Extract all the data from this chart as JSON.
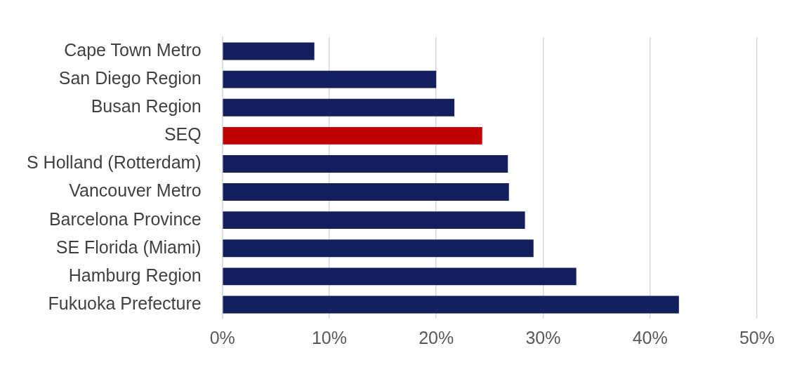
{
  "chart_data": {
    "type": "bar",
    "orientation": "horizontal",
    "categories": [
      "Cape Town Metro",
      "San Diego Region",
      "Busan Region",
      "SEQ",
      "S Holland (Rotterdam)",
      "Vancouver Metro",
      "Barcelona Province",
      "SE Florida (Miami)",
      "Hamburg Region",
      "Fukuoka Prefecture"
    ],
    "values": [
      8.6,
      20.0,
      21.7,
      24.3,
      26.7,
      26.8,
      28.3,
      29.1,
      33.1,
      42.7
    ],
    "colors": [
      "#14205e",
      "#14205e",
      "#14205e",
      "#c00000",
      "#14205e",
      "#14205e",
      "#14205e",
      "#14205e",
      "#14205e",
      "#14205e"
    ],
    "xlim": [
      0,
      50
    ],
    "xticks": [
      {
        "value": 0,
        "label": "0%"
      },
      {
        "value": 10,
        "label": "10%"
      },
      {
        "value": 20,
        "label": "20%"
      },
      {
        "value": 30,
        "label": "30%"
      },
      {
        "value": 40,
        "label": "40%"
      },
      {
        "value": 50,
        "label": "50%"
      }
    ],
    "grid": "x"
  }
}
